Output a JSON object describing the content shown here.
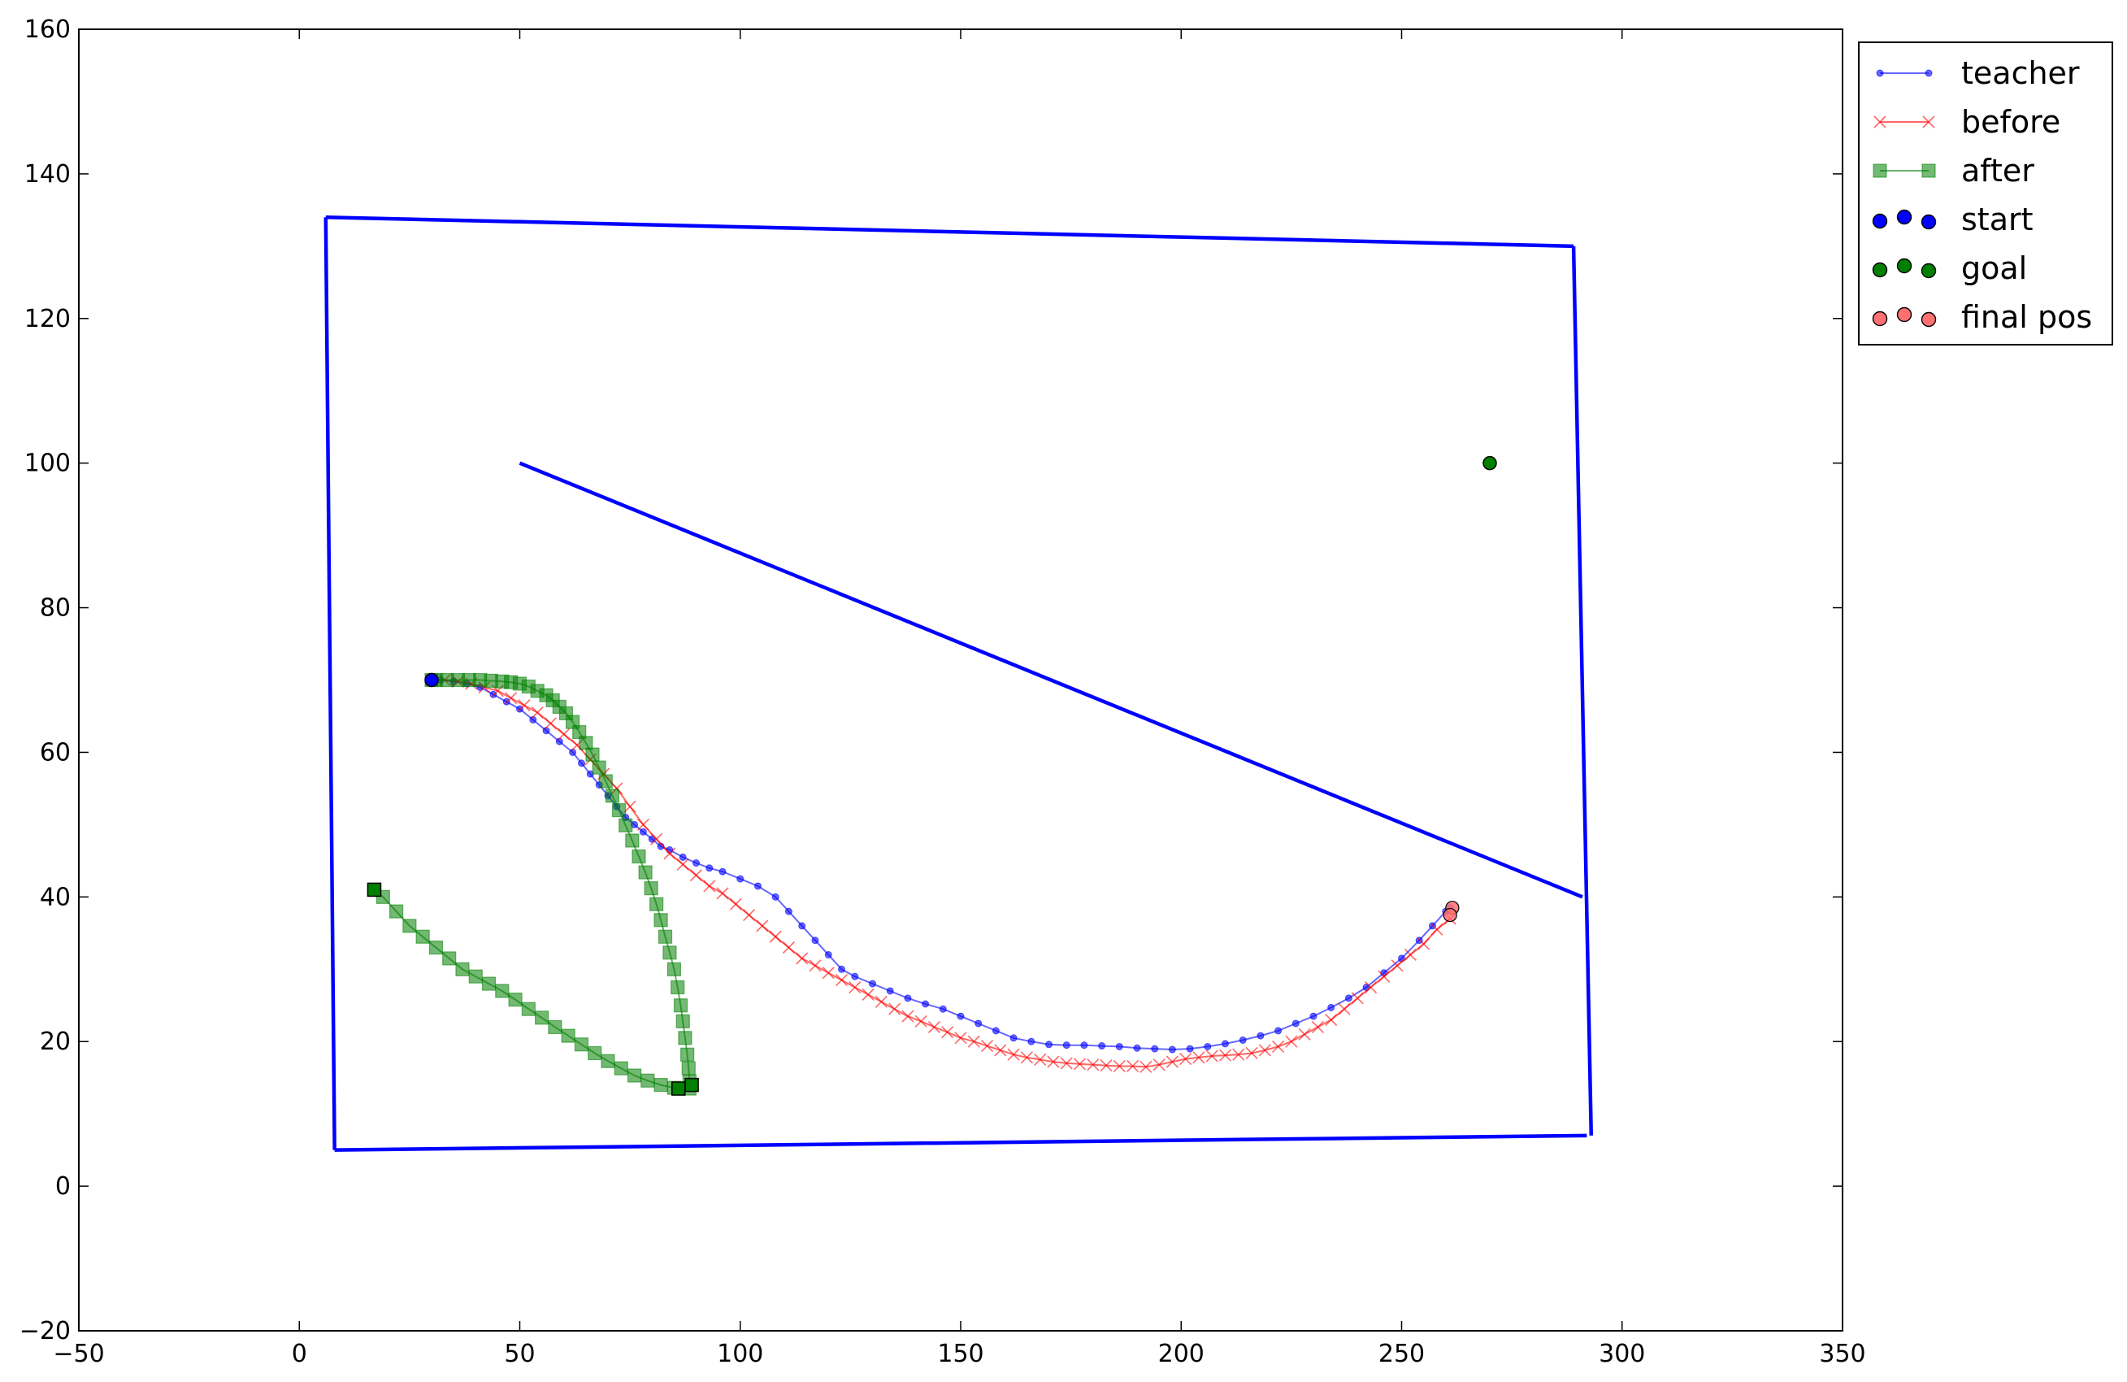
{
  "chart_data": {
    "type": "line",
    "title": "",
    "xlabel": "",
    "ylabel": "",
    "xlim": [
      -50,
      350
    ],
    "ylim": [
      -20,
      160
    ],
    "xticks": [
      -50,
      0,
      50,
      100,
      150,
      200,
      250,
      300,
      350
    ],
    "yticks": [
      -20,
      0,
      20,
      40,
      60,
      80,
      100,
      120,
      140,
      160
    ],
    "xtick_labels": [
      "−50",
      "0",
      "50",
      "100",
      "150",
      "200",
      "250",
      "300",
      "350"
    ],
    "ytick_labels": [
      "−20",
      "0",
      "20",
      "40",
      "60",
      "80",
      "100",
      "120",
      "140",
      "160"
    ],
    "grid": false,
    "legend_position": "outside-top-right",
    "walls": {
      "color": "#0000ff",
      "segments": [
        [
          [
            6,
            134
          ],
          [
            289,
            130
          ]
        ],
        [
          [
            289,
            130
          ],
          [
            293,
            7
          ]
        ],
        [
          [
            292,
            7
          ],
          [
            8,
            5
          ]
        ],
        [
          [
            8,
            5
          ],
          [
            6,
            134
          ]
        ],
        [
          [
            50,
            100
          ],
          [
            291,
            40
          ]
        ]
      ]
    },
    "series": [
      {
        "name": "teacher",
        "color": "#0000ff",
        "marker": "dot",
        "x": [
          30,
          32,
          35,
          38,
          41,
          44,
          47,
          50,
          53,
          56,
          59,
          62,
          64,
          66,
          68,
          70,
          72,
          74,
          76,
          78,
          80,
          82,
          84,
          87,
          90,
          93,
          96,
          100,
          104,
          108,
          111,
          114,
          117,
          120,
          123,
          126,
          130,
          134,
          138,
          142,
          146,
          150,
          154,
          158,
          162,
          166,
          170,
          174,
          178,
          182,
          186,
          190,
          194,
          198,
          202,
          206,
          210,
          214,
          218,
          222,
          226,
          230,
          234,
          238,
          242,
          246,
          250,
          254,
          257,
          260,
          261
        ],
        "y": [
          70,
          70,
          69.8,
          69.5,
          69,
          68,
          67,
          66,
          64.5,
          63,
          61.5,
          60,
          58.5,
          57,
          55.5,
          54,
          52.5,
          51,
          50,
          49,
          48,
          47,
          46.5,
          45.5,
          44.7,
          44,
          43.5,
          42.5,
          41.5,
          40,
          38,
          36,
          34,
          32,
          30,
          29,
          28,
          27,
          26,
          25.2,
          24.5,
          23.5,
          22.5,
          21.5,
          20.5,
          20,
          19.6,
          19.5,
          19.5,
          19.4,
          19.3,
          19.1,
          19,
          18.9,
          19,
          19.3,
          19.7,
          20.2,
          20.8,
          21.5,
          22.5,
          23.5,
          24.7,
          26,
          27.5,
          29.5,
          31.5,
          34,
          36,
          38,
          38.5
        ]
      },
      {
        "name": "before",
        "color": "#ff0000",
        "marker": "x",
        "x": [
          30,
          33,
          36,
          39,
          42,
          45,
          48,
          51,
          54,
          57,
          60,
          63,
          66,
          69,
          72,
          75,
          78,
          81,
          84,
          87,
          90,
          93,
          96,
          99,
          102,
          105,
          108,
          111,
          114,
          117,
          120,
          123,
          126,
          129,
          132,
          135,
          138,
          141,
          144,
          147,
          150,
          153,
          156,
          159,
          162,
          165,
          168,
          171,
          174,
          177,
          180,
          183,
          186,
          189,
          192,
          195,
          198,
          201,
          204,
          207,
          210,
          213,
          216,
          219,
          222,
          225,
          228,
          231,
          234,
          237,
          240,
          243,
          246,
          249,
          252,
          255,
          258,
          261
        ],
        "y": [
          70,
          70,
          69.8,
          69.5,
          69,
          68.5,
          67.5,
          66.5,
          65.5,
          64,
          62.5,
          61,
          59,
          57,
          55,
          52.5,
          50,
          48,
          46,
          44.5,
          43,
          41.5,
          40.5,
          39,
          37.5,
          36,
          34.5,
          33,
          31.5,
          30.5,
          29.5,
          28.5,
          27.5,
          26.5,
          25.5,
          24.5,
          23.5,
          22.8,
          22,
          21.3,
          20.5,
          20,
          19.4,
          18.8,
          18.2,
          17.8,
          17.5,
          17.2,
          17,
          16.9,
          16.8,
          16.7,
          16.6,
          16.6,
          16.5,
          16.8,
          17.2,
          17.6,
          17.8,
          18,
          18.1,
          18.2,
          18.4,
          18.8,
          19.3,
          20,
          21,
          22,
          23,
          24.5,
          26,
          27.5,
          29,
          30.5,
          32,
          33.5,
          35.5,
          37
        ]
      },
      {
        "name": "after",
        "color": "#008000",
        "marker": "square",
        "x": [
          17,
          19,
          22,
          25,
          28,
          31,
          34,
          37,
          40,
          43,
          46,
          49,
          52,
          55,
          58,
          61,
          64,
          67,
          70,
          73,
          76,
          79,
          82,
          85,
          86,
          88.5,
          88.5,
          88.3,
          88,
          87.5,
          87,
          86.5,
          85.8,
          85,
          84,
          83,
          82,
          81,
          79.8,
          78.5,
          77,
          75.5,
          74,
          72.5,
          71,
          69.5,
          68,
          66.5,
          65,
          63.5,
          62,
          60.5,
          59,
          57.5,
          56,
          54,
          52,
          50,
          48,
          46,
          43.5,
          41,
          38.5,
          36,
          33.5,
          31,
          30
        ],
        "y": [
          41,
          40,
          38,
          36,
          34.5,
          33,
          31.5,
          30,
          29,
          28,
          27,
          25.8,
          24.5,
          23.3,
          22,
          20.8,
          19.6,
          18.4,
          17.3,
          16.3,
          15.3,
          14.6,
          14,
          13.6,
          13.5,
          13.5,
          14.5,
          16.3,
          18.2,
          20.5,
          22.8,
          25,
          27.5,
          30,
          32.3,
          34.5,
          36.8,
          39,
          41.2,
          43.4,
          45.6,
          47.8,
          49.9,
          52,
          54,
          56,
          57.9,
          59.7,
          61.3,
          62.8,
          64.2,
          65.4,
          66.3,
          67.2,
          67.9,
          68.5,
          69.1,
          69.5,
          69.7,
          69.8,
          69.9,
          70,
          70,
          70,
          70,
          70,
          70
        ]
      }
    ],
    "after_endpoints": {
      "color": "#008000",
      "points": [
        [
          17,
          41
        ],
        [
          86,
          13.5
        ],
        [
          89,
          14
        ]
      ]
    },
    "start_point": {
      "name": "start",
      "x": 30,
      "y": 70,
      "color": "#0000ff"
    },
    "goal_point": {
      "name": "goal",
      "x": 270,
      "y": 100,
      "color": "#008000"
    },
    "final_pos_points": {
      "name": "final pos",
      "color": "#ff7070",
      "points": [
        [
          261.5,
          38.5
        ],
        [
          261,
          37.5
        ]
      ]
    },
    "legend": [
      {
        "label": "teacher",
        "color": "#0000ff",
        "marker": "dot"
      },
      {
        "label": "before",
        "color": "#ff0000",
        "marker": "x"
      },
      {
        "label": "after",
        "color": "#008000",
        "marker": "square"
      },
      {
        "label": "start",
        "color": "#0000ff",
        "marker": "circle-triple"
      },
      {
        "label": "goal",
        "color": "#008000",
        "marker": "circle-triple"
      },
      {
        "label": "final pos",
        "color": "#ff7070",
        "marker": "circle-triple"
      }
    ]
  }
}
